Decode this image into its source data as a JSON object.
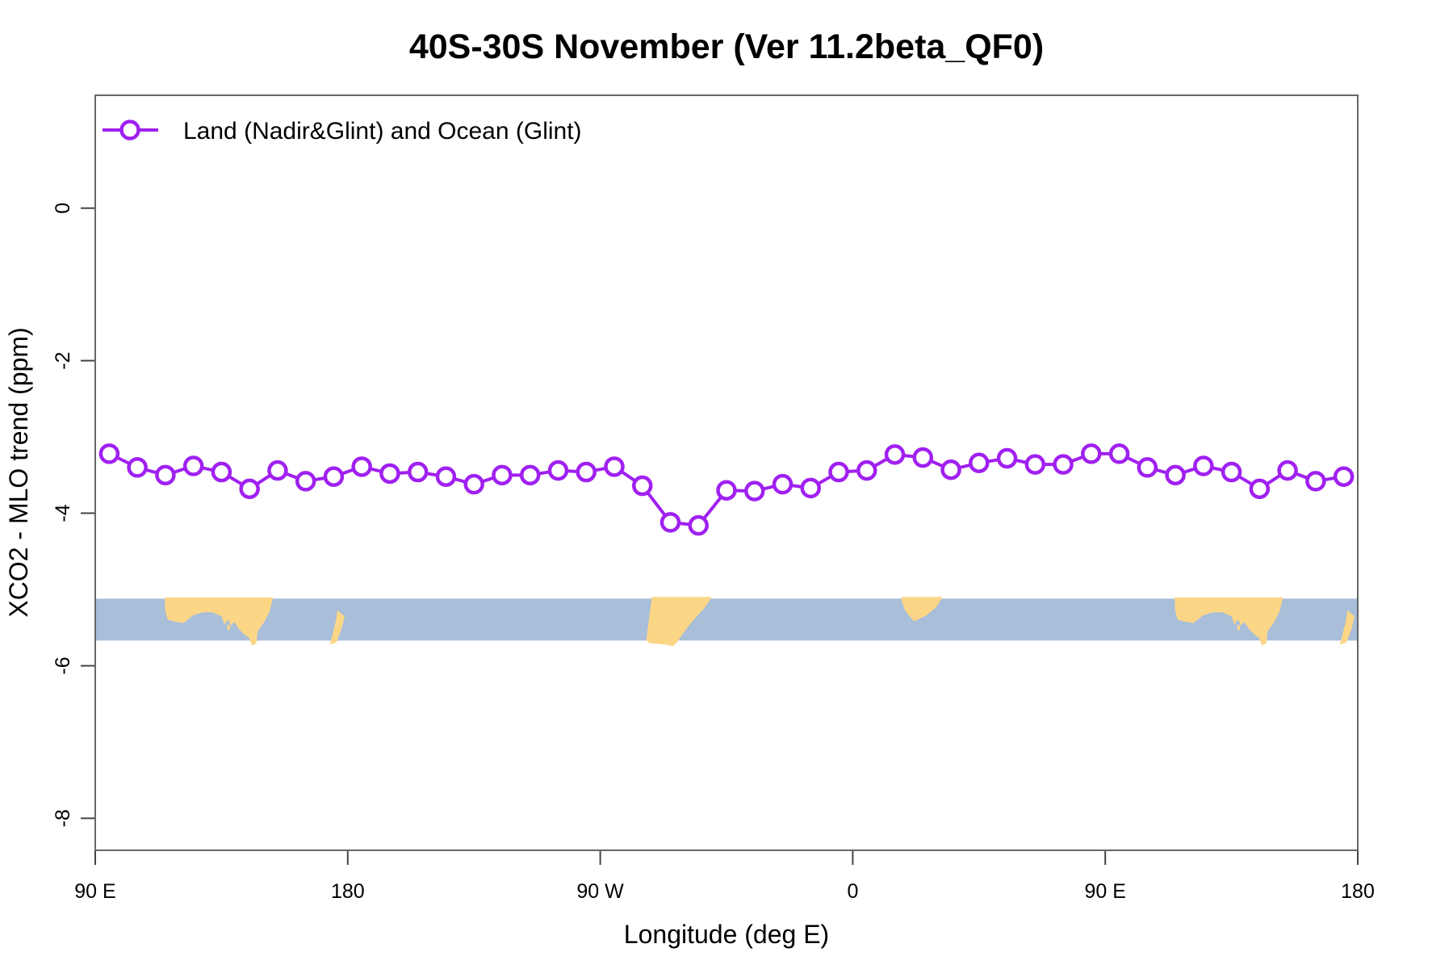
{
  "page": {
    "background": "#ffffff"
  },
  "chart_data": {
    "type": "line",
    "title": "40S-30S November (Ver 11.2beta_QF0)",
    "xlabel": "Longitude (deg E)",
    "ylabel": "XCO2 - MLO trend (ppm)",
    "xlim": [
      90,
      540
    ],
    "ylim": [
      -8.42,
      1.48
    ],
    "grid": false,
    "legend_position": "top-left-inside",
    "x_ticks": {
      "values": [
        90,
        180,
        270,
        360,
        450,
        540
      ],
      "labels": [
        "90 E",
        "180",
        "90 W",
        "0",
        "90 E",
        "180"
      ]
    },
    "y_ticks": {
      "values": [
        0,
        -2,
        -4,
        -6,
        -8
      ],
      "labels": [
        "0",
        "-2",
        "-4",
        "-6",
        "-8"
      ]
    },
    "series": [
      {
        "name": "Land (Nadir&Glint) and Ocean (Glint)",
        "color": "#A020F0",
        "marker": "open-circle",
        "x": [
          95,
          105,
          115,
          125,
          135,
          145,
          155,
          165,
          175,
          185,
          195,
          205,
          215,
          225,
          235,
          245,
          255,
          265,
          275,
          285,
          295,
          305,
          315,
          325,
          335,
          345,
          355,
          365,
          375,
          385,
          395,
          405,
          415,
          425,
          435,
          445,
          455,
          465,
          475,
          485,
          495,
          505,
          515,
          525,
          535
        ],
        "y": [
          -3.22,
          -3.4,
          -3.5,
          -3.38,
          -3.46,
          -3.68,
          -3.44,
          -3.58,
          -3.52,
          -3.39,
          -3.48,
          -3.46,
          -3.52,
          -3.62,
          -3.5,
          -3.5,
          -3.44,
          -3.46,
          -3.39,
          -3.64,
          -4.12,
          -4.16,
          -3.7,
          -3.71,
          -3.62,
          -3.67,
          -3.46,
          -3.44,
          -3.23,
          -3.27,
          -3.43,
          -3.34,
          -3.28,
          -3.36,
          -3.36,
          -3.22,
          -3.22,
          -3.4,
          -3.5,
          -3.38,
          -3.46,
          -3.68,
          -3.44,
          -3.58,
          -3.52
        ]
      }
    ],
    "map_band": {
      "name": "coastline-strip-30S-40S",
      "ocean_color": "#A8BED9",
      "land_color": "#FCD687",
      "y_top": -5.12,
      "y_bottom": -5.67,
      "lands": [
        {
          "name": "australia",
          "points": [
            [
              114.8,
              -0.03
            ],
            [
              153.4,
              -0.03
            ],
            [
              152.2,
              0.3
            ],
            [
              150.3,
              0.55
            ],
            [
              148.2,
              0.75
            ],
            [
              146.2,
              0.95
            ],
            [
              144.0,
              0.9
            ],
            [
              141.5,
              0.75
            ],
            [
              139.5,
              0.55
            ],
            [
              138.4,
              0.65
            ],
            [
              137.3,
              0.5
            ],
            [
              136.0,
              0.62
            ],
            [
              135.0,
              0.42
            ],
            [
              131.5,
              0.32
            ],
            [
              128.0,
              0.33
            ],
            [
              124.8,
              0.4
            ],
            [
              121.5,
              0.58
            ],
            [
              118.3,
              0.55
            ],
            [
              115.8,
              0.5
            ],
            [
              114.9,
              0.28
            ]
          ]
        },
        {
          "name": "kangaroo-island",
          "points": [
            [
              137.0,
              0.62
            ],
            [
              138.1,
              0.64
            ],
            [
              137.9,
              0.76
            ],
            [
              137.1,
              0.74
            ]
          ]
        },
        {
          "name": "tasmania",
          "points": [
            [
              144.9,
              0.8
            ],
            [
              147.9,
              0.82
            ],
            [
              147.4,
              1.06
            ],
            [
              145.9,
              1.12
            ],
            [
              144.9,
              0.96
            ]
          ]
        },
        {
          "name": "new-zealand",
          "points": [
            [
              176.3,
              0.28
            ],
            [
              178.9,
              0.42
            ],
            [
              177.8,
              0.72
            ],
            [
              176.0,
              1.04
            ],
            [
              173.6,
              1.1
            ],
            [
              174.8,
              0.8
            ],
            [
              175.8,
              0.52
            ]
          ]
        },
        {
          "name": "south-america",
          "points": [
            [
              288.4,
              -0.04
            ],
            [
              309.8,
              -0.04
            ],
            [
              307.2,
              0.22
            ],
            [
              304.2,
              0.44
            ],
            [
              301.6,
              0.64
            ],
            [
              299.2,
              0.86
            ],
            [
              297.4,
              1.04
            ],
            [
              295.9,
              1.14
            ],
            [
              293.6,
              1.1
            ],
            [
              287.6,
              1.06
            ],
            [
              286.4,
              1.0
            ],
            [
              287.3,
              0.52
            ],
            [
              288.0,
              0.16
            ]
          ]
        },
        {
          "name": "south-africa",
          "points": [
            [
              377.4,
              -0.04
            ],
            [
              392.0,
              -0.04
            ],
            [
              389.8,
              0.2
            ],
            [
              386.3,
              0.4
            ],
            [
              381.8,
              0.54
            ],
            [
              378.8,
              0.3
            ],
            [
              377.5,
              0.08
            ]
          ]
        },
        {
          "name": "australia-repeat",
          "base": "australia",
          "lon_offset": 360
        },
        {
          "name": "kangaroo-island-repeat",
          "base": "kangaroo-island",
          "lon_offset": 360
        },
        {
          "name": "tasmania-repeat",
          "base": "tasmania",
          "lon_offset": 360
        },
        {
          "name": "new-zealand-repeat",
          "base": "new-zealand",
          "lon_offset": 360
        }
      ]
    }
  }
}
